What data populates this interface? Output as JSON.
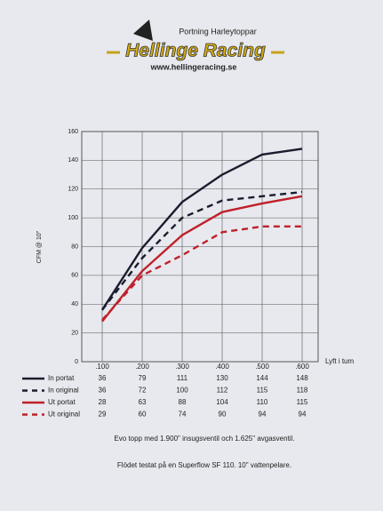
{
  "header": {
    "tagline": "Portning Harleytoppar",
    "brand": "Hellinge Racing",
    "url": "www.hellingeracing.se"
  },
  "chart_data": {
    "type": "line",
    "y_label": "CFM @ 10\"",
    "x_label": "Lyft i tum",
    "categories": [
      ".100",
      ".200",
      ".300",
      ".400",
      ".500",
      ".600"
    ],
    "series": [
      {
        "name": "In portat",
        "color": "#1b1d2e",
        "dashed": false,
        "values": [
          36,
          79,
          111,
          130,
          144,
          148
        ]
      },
      {
        "name": "In original",
        "color": "#1b1d2e",
        "dashed": true,
        "values": [
          36,
          72,
          100,
          112,
          115,
          118
        ]
      },
      {
        "name": "Ut portat",
        "color": "#c0202a",
        "dashed": false,
        "values": [
          28,
          63,
          88,
          104,
          110,
          115
        ]
      },
      {
        "name": "Ut original",
        "color": "#c0202a",
        "dashed": true,
        "values": [
          29,
          60,
          74,
          90,
          94,
          94
        ]
      }
    ],
    "ylim": [
      0,
      160
    ],
    "yticks": [
      0,
      20,
      40,
      60,
      80,
      100,
      120,
      140,
      160
    ],
    "grid": true
  },
  "notes": [
    "Evo topp med 1.900\" insugsventil och 1.625\" avgasventil.",
    "Flödet testat på en Superflow SF 110. 10\" vattenpelare."
  ]
}
